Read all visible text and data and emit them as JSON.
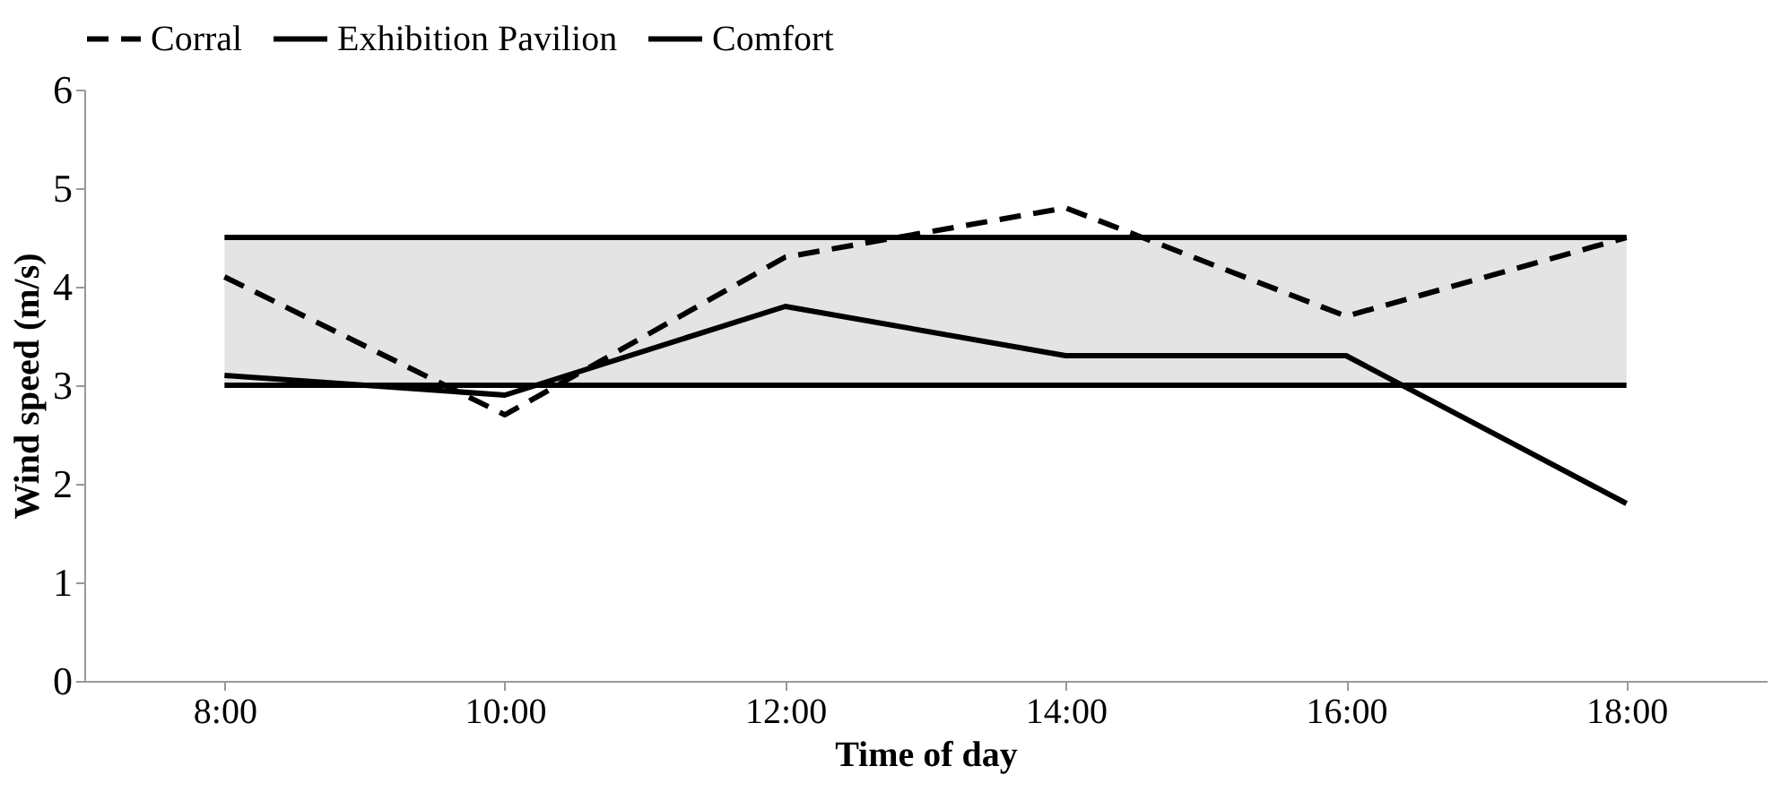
{
  "chart_data": {
    "type": "line",
    "xlabel": "Time of day",
    "ylabel": "Wind speed (m/s)",
    "categories": [
      "8:00",
      "10:00",
      "12:00",
      "14:00",
      "16:00",
      "18:00"
    ],
    "series": [
      {
        "name": "Corral",
        "color": "#000000",
        "line_style": "dashed",
        "values": [
          4.1,
          2.7,
          4.3,
          4.8,
          3.7,
          4.5
        ]
      },
      {
        "name": "Exhibition Pavilion",
        "color": "#000000",
        "line_style": "solid",
        "values": [
          3.1,
          2.9,
          3.8,
          3.3,
          3.3,
          1.8
        ]
      },
      {
        "name": "Comfort",
        "color": "#000000",
        "line_style": "solid",
        "values": [
          3,
          3,
          3,
          3,
          3,
          3
        ]
      },
      {
        "color": "#000000",
        "line_style": "solid",
        "values": [
          4.5,
          4.5,
          4.5,
          4.5,
          4.5,
          4.5
        ]
      }
    ],
    "bands": [
      {
        "axis": "y",
        "from": 3,
        "to": 4.5,
        "color": "#e4e4e4"
      }
    ],
    "ylim": [
      0,
      6
    ],
    "yticks": [
      0,
      1,
      2,
      3,
      4,
      5,
      6
    ],
    "grid": false,
    "legend": "top",
    "marker": "none"
  }
}
